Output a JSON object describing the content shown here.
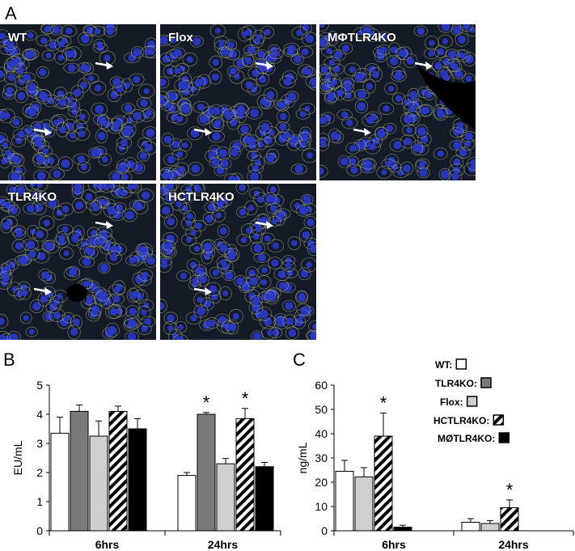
{
  "panel_labels": {
    "a": "A",
    "b": "B",
    "c": "C"
  },
  "micrographs": [
    {
      "label": "WT"
    },
    {
      "label": "Flox"
    },
    {
      "label": "MΦTLR4KO"
    },
    {
      "label": "TLR4KO"
    },
    {
      "label": "HCTLR4KO"
    }
  ],
  "colors": {
    "WT": "#ffffff",
    "TLR4KO": "#7a7a7a",
    "Flox": "#cfcfcf",
    "HCTLR4KO": "hatch",
    "MØTLR4KO": "#000000"
  },
  "chart_data": [
    {
      "type": "bar",
      "panel": "B",
      "ylabel": "EU/mL",
      "ylim": [
        0,
        5
      ],
      "yticks": [
        "0",
        "1",
        "2",
        "3",
        "4",
        "5"
      ],
      "categories": [
        "6hrs",
        "24hrs"
      ],
      "series": [
        {
          "name": "WT",
          "values": [
            3.35,
            1.9
          ],
          "errors": [
            0.55,
            0.1
          ],
          "sig": [
            false,
            false
          ]
        },
        {
          "name": "TLR4KO",
          "values": [
            4.1,
            4.0
          ],
          "errors": [
            0.22,
            0.06
          ],
          "sig": [
            false,
            true
          ]
        },
        {
          "name": "Flox",
          "values": [
            3.25,
            2.3
          ],
          "errors": [
            0.52,
            0.18
          ],
          "sig": [
            false,
            false
          ]
        },
        {
          "name": "HCTLR4KO",
          "values": [
            4.1,
            3.85
          ],
          "errors": [
            0.18,
            0.35
          ],
          "sig": [
            false,
            true
          ]
        },
        {
          "name": "MØTLR4KO",
          "values": [
            3.5,
            2.2
          ],
          "errors": [
            0.35,
            0.15
          ],
          "sig": [
            false,
            false
          ]
        }
      ],
      "sig_marker": "*"
    },
    {
      "type": "bar",
      "panel": "C",
      "ylabel": "ng/mL",
      "ylim": [
        0,
        60
      ],
      "yticks": [
        "0",
        "10",
        "20",
        "30",
        "40",
        "50",
        "60"
      ],
      "categories": [
        "6hrs",
        "24hrs"
      ],
      "series": [
        {
          "name": "WT",
          "values": [
            24.5,
            3.5
          ],
          "errors": [
            4.5,
            1.5
          ],
          "sig": [
            false,
            false
          ]
        },
        {
          "name": "Flox",
          "values": [
            22.2,
            3.0
          ],
          "errors": [
            3.8,
            1.2
          ],
          "sig": [
            false,
            false
          ]
        },
        {
          "name": "HCTLR4KO",
          "values": [
            39.0,
            9.5
          ],
          "errors": [
            9.5,
            3.2
          ],
          "sig": [
            true,
            true
          ]
        },
        {
          "name": "MØTLR4KO",
          "values": [
            1.5,
            0
          ],
          "errors": [
            0.8,
            0
          ],
          "sig": [
            false,
            false
          ]
        }
      ],
      "legend": [
        {
          "name": "WT",
          "label": "WT:"
        },
        {
          "name": "TLR4KO",
          "label": "TLR4KO:"
        },
        {
          "name": "Flox",
          "label": "Flox:"
        },
        {
          "name": "HCTLR4KO",
          "label": "HCTLR4KO:"
        },
        {
          "name": "MØTLR4KO",
          "label": "MØTLR4KO:"
        }
      ],
      "sig_marker": "*"
    }
  ]
}
